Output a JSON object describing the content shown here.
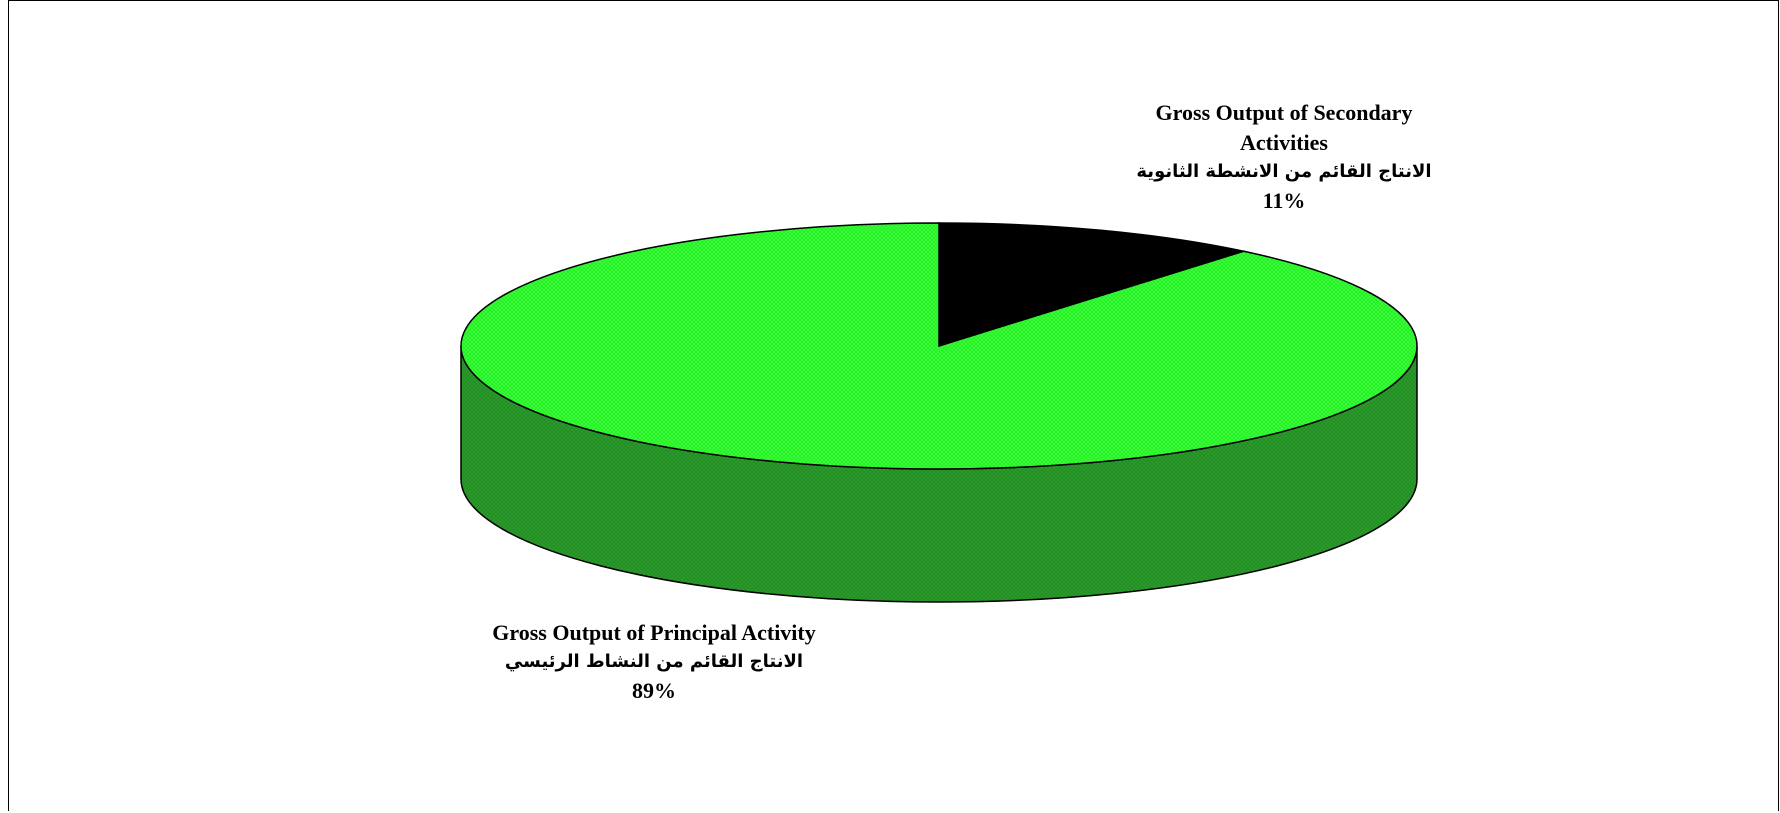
{
  "chart_data": {
    "type": "pie",
    "style": "3d",
    "start_angle_deg": 90,
    "direction": "clockwise",
    "slices": [
      {
        "label_en": "Gross Output of Secondary Activities",
        "label_ar": "الانتاج القائم من الانشطة الثانوية",
        "value": 11,
        "percent_label": "11%",
        "color": "#000000",
        "side_color": "#000000"
      },
      {
        "label_en": "Gross Output of Principal Activity",
        "label_ar": "الانتاج القائم من النشاط الرئيسي",
        "value": 89,
        "percent_label": "89%",
        "color": "#33ff33",
        "side_color": "#2a9a2a"
      }
    ]
  }
}
